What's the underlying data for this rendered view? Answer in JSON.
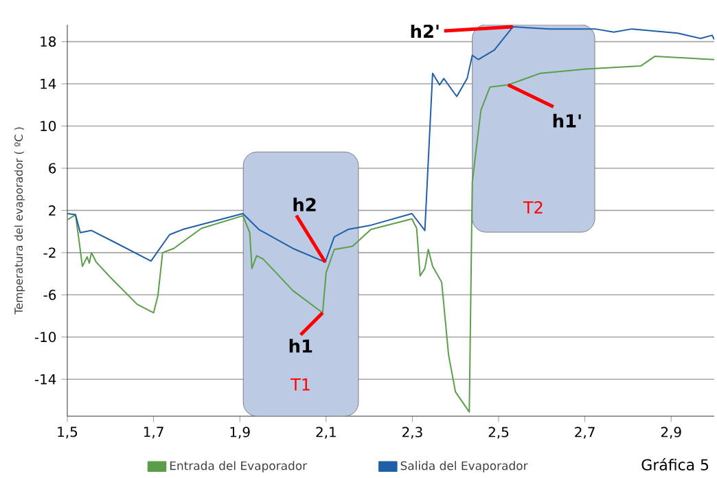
{
  "chart_data": {
    "type": "line",
    "ylabel": "Temperatura del evaporador ( ºC )",
    "xlim": [
      1.5,
      3.0
    ],
    "ylim": [
      -17.5,
      19.6
    ],
    "xticks": [
      {
        "value": 1.5,
        "label": "1,5"
      },
      {
        "value": 1.7,
        "label": "1,7"
      },
      {
        "value": 1.9,
        "label": "1,9"
      },
      {
        "value": 2.1,
        "label": "2,1"
      },
      {
        "value": 2.3,
        "label": "2,3"
      },
      {
        "value": 2.5,
        "label": "2,5"
      },
      {
        "value": 2.7,
        "label": "2,7"
      },
      {
        "value": 2.9,
        "label": "2,9"
      }
    ],
    "yticks": [
      -14,
      -10,
      -6,
      -2,
      2,
      6,
      10,
      14,
      18
    ],
    "grid": "y",
    "legend": "bottom",
    "marker": "none",
    "line_style": "solid",
    "series": [
      {
        "name": "Entrada del Evaporador",
        "color": "#5a9e4a",
        "x": [
          1.5,
          1.519,
          1.526,
          1.535,
          1.546,
          1.551,
          1.556,
          1.567,
          1.599,
          1.662,
          1.7,
          1.71,
          1.721,
          1.747,
          1.811,
          1.907,
          1.923,
          1.928,
          1.939,
          1.954,
          2.023,
          2.092,
          2.1,
          2.119,
          2.161,
          2.204,
          2.299,
          2.31,
          2.318,
          2.329,
          2.337,
          2.347,
          2.368,
          2.384,
          2.4,
          2.432,
          2.439,
          2.459,
          2.48,
          2.522,
          2.597,
          2.703,
          2.83,
          2.862,
          3.0
        ],
        "values": [
          1.1,
          1.6,
          -0.5,
          -3.3,
          -2.4,
          -3.0,
          -2.0,
          -2.9,
          -4.3,
          -6.9,
          -7.7,
          -6.1,
          -2.0,
          -1.6,
          0.3,
          1.5,
          -0.1,
          -3.5,
          -2.3,
          -2.6,
          -5.6,
          -7.7,
          -3.9,
          -1.7,
          -1.4,
          0.2,
          1.2,
          0.3,
          -4.2,
          -3.5,
          -1.7,
          -3.3,
          -4.8,
          -11.7,
          -15.2,
          -17.1,
          4.7,
          11.5,
          13.7,
          13.9,
          15.0,
          15.4,
          15.7,
          16.6,
          16.3
        ]
      },
      {
        "name": "Salida del Evaporador",
        "color": "#1f5fa8",
        "x": [
          1.5,
          1.519,
          1.53,
          1.556,
          1.609,
          1.694,
          1.737,
          1.768,
          1.907,
          1.944,
          2.023,
          2.098,
          2.119,
          2.151,
          2.204,
          2.299,
          2.329,
          2.347,
          2.363,
          2.373,
          2.403,
          2.427,
          2.439,
          2.453,
          2.49,
          2.533,
          2.618,
          2.724,
          2.767,
          2.809,
          2.915,
          2.968,
          2.995,
          3.0
        ],
        "values": [
          1.7,
          1.6,
          -0.1,
          0.1,
          -1.0,
          -2.8,
          -0.3,
          0.2,
          1.7,
          0.2,
          -1.6,
          -2.9,
          -0.5,
          0.2,
          0.6,
          1.7,
          0.1,
          15.0,
          13.9,
          14.5,
          12.8,
          14.5,
          16.7,
          16.3,
          17.2,
          19.4,
          19.2,
          19.2,
          18.9,
          19.2,
          18.8,
          18.3,
          18.6,
          18.2
        ]
      }
    ],
    "bands": [
      {
        "axis": "x",
        "from": 1.908,
        "to": 2.175,
        "label": "T1",
        "color": "#bccbe3"
      },
      {
        "axis": "x",
        "from": 2.439,
        "to": 2.723,
        "label": "T2",
        "color": "#bccbe3"
      }
    ],
    "annotations": [
      {
        "text": "h1",
        "x": 2.092,
        "y": -7.7
      },
      {
        "text": "h2",
        "x": 2.098,
        "y": -2.9
      },
      {
        "text": "h2'",
        "x": 2.533,
        "y": 19.4
      },
      {
        "text": "h1'",
        "x": 2.522,
        "y": 13.9
      },
      "Gráfica 5"
    ]
  }
}
